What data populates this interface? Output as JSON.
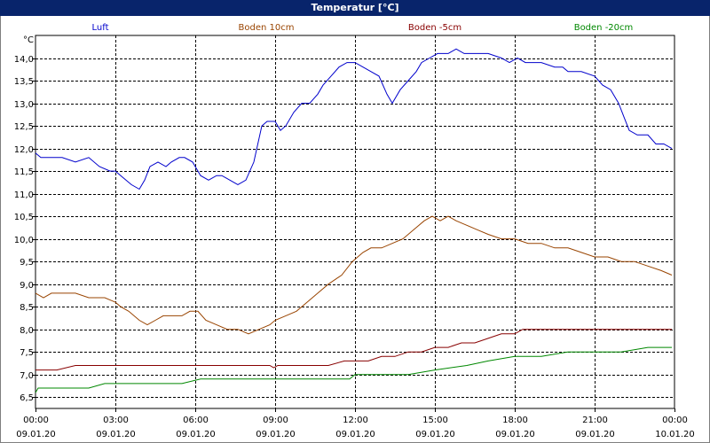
{
  "window": {
    "title": "Temperatur [°C]"
  },
  "chart_data": {
    "type": "line",
    "title": "Temperatur [°C]",
    "ylabel": "°C",
    "ylim": [
      6.25,
      14.5
    ],
    "xlim": [
      0,
      24
    ],
    "grid": true,
    "legend_placement": "top",
    "yticks": [
      "14,0",
      "13,5",
      "13,0",
      "12,5",
      "12,0",
      "11,5",
      "11,0",
      "10,5",
      "10,0",
      "9,5",
      "9,0",
      "8,5",
      "8,0",
      "7,5",
      "7,0",
      "6,5"
    ],
    "ytick_values": [
      14.0,
      13.5,
      13.0,
      12.5,
      12.0,
      11.5,
      11.0,
      10.5,
      10.0,
      9.5,
      9.0,
      8.5,
      8.0,
      7.5,
      7.0,
      6.5
    ],
    "xticks": [
      {
        "time": "00:00",
        "date": "09.01.20",
        "value": 0
      },
      {
        "time": "03:00",
        "date": "09.01.20",
        "value": 3
      },
      {
        "time": "06:00",
        "date": "09.01.20",
        "value": 6
      },
      {
        "time": "09:00",
        "date": "09.01.20",
        "value": 9
      },
      {
        "time": "12:00",
        "date": "09.01.20",
        "value": 12
      },
      {
        "time": "15:00",
        "date": "09.01.20",
        "value": 15
      },
      {
        "time": "18:00",
        "date": "09.01.20",
        "value": 18
      },
      {
        "time": "21:00",
        "date": "09.01.20",
        "value": 21
      },
      {
        "time": "00:00",
        "date": "10.01.20",
        "value": 24
      }
    ],
    "series": [
      {
        "name": "Luft",
        "color": "#0000cc",
        "x": [
          0,
          0.2,
          0.4,
          0.7,
          1.0,
          1.5,
          2.0,
          2.4,
          2.8,
          3.0,
          3.2,
          3.6,
          3.9,
          4.1,
          4.3,
          4.6,
          4.9,
          5.1,
          5.4,
          5.6,
          5.9,
          6.2,
          6.5,
          6.8,
          7.0,
          7.3,
          7.6,
          7.9,
          8.2,
          8.5,
          8.7,
          9.0,
          9.2,
          9.4,
          9.7,
          10.0,
          10.3,
          10.6,
          10.8,
          11.1,
          11.4,
          11.7,
          12.0,
          12.3,
          12.6,
          12.9,
          13.2,
          13.4,
          13.7,
          14.0,
          14.3,
          14.5,
          14.8,
          15.1,
          15.5,
          15.8,
          16.1,
          16.6,
          17.0,
          17.5,
          17.8,
          18.1,
          18.4,
          18.7,
          19.0,
          19.5,
          19.8,
          20.0,
          20.5,
          21.0,
          21.3,
          21.6,
          21.9,
          22.1,
          22.3,
          22.6,
          23.0,
          23.3,
          23.6,
          23.9
        ],
        "values": [
          11.9,
          11.8,
          11.8,
          11.8,
          11.8,
          11.7,
          11.8,
          11.6,
          11.5,
          11.5,
          11.4,
          11.2,
          11.1,
          11.3,
          11.6,
          11.7,
          11.6,
          11.7,
          11.8,
          11.8,
          11.7,
          11.4,
          11.3,
          11.4,
          11.4,
          11.3,
          11.2,
          11.3,
          11.7,
          12.5,
          12.6,
          12.6,
          12.4,
          12.5,
          12.8,
          13.0,
          13.0,
          13.2,
          13.4,
          13.6,
          13.8,
          13.9,
          13.9,
          13.8,
          13.7,
          13.6,
          13.2,
          13.0,
          13.3,
          13.5,
          13.7,
          13.9,
          14.0,
          14.1,
          14.1,
          14.2,
          14.1,
          14.1,
          14.1,
          14.0,
          13.9,
          14.0,
          13.9,
          13.9,
          13.9,
          13.8,
          13.8,
          13.7,
          13.7,
          13.6,
          13.4,
          13.3,
          13.0,
          12.7,
          12.4,
          12.3,
          12.3,
          12.1,
          12.1,
          12.0
        ]
      },
      {
        "name": "Boden 10cm",
        "color": "#994400",
        "x": [
          0,
          0.3,
          0.6,
          1.0,
          1.5,
          2.0,
          2.6,
          3.0,
          3.2,
          3.5,
          3.9,
          4.2,
          4.5,
          4.8,
          5.1,
          5.5,
          5.8,
          6.1,
          6.4,
          6.8,
          7.2,
          7.6,
          8.0,
          8.4,
          8.8,
          9.0,
          9.4,
          9.8,
          10.2,
          10.6,
          11.0,
          11.5,
          11.9,
          12.3,
          12.6,
          13.0,
          13.4,
          13.8,
          14.2,
          14.6,
          14.9,
          15.2,
          15.5,
          15.8,
          16.2,
          16.6,
          17.0,
          17.5,
          18.0,
          18.5,
          19.0,
          19.5,
          20.0,
          20.5,
          21.0,
          21.5,
          22.0,
          22.5,
          23.0,
          23.5,
          23.9
        ],
        "values": [
          8.8,
          8.7,
          8.8,
          8.8,
          8.8,
          8.7,
          8.7,
          8.6,
          8.5,
          8.4,
          8.2,
          8.1,
          8.2,
          8.3,
          8.3,
          8.3,
          8.4,
          8.4,
          8.2,
          8.1,
          8.0,
          8.0,
          7.9,
          8.0,
          8.1,
          8.2,
          8.3,
          8.4,
          8.6,
          8.8,
          9.0,
          9.2,
          9.5,
          9.7,
          9.8,
          9.8,
          9.9,
          10.0,
          10.2,
          10.4,
          10.5,
          10.4,
          10.5,
          10.4,
          10.3,
          10.2,
          10.1,
          10.0,
          10.0,
          9.9,
          9.9,
          9.8,
          9.8,
          9.7,
          9.6,
          9.6,
          9.5,
          9.5,
          9.4,
          9.3,
          9.2
        ]
      },
      {
        "name": "Boden -5cm",
        "color": "#880000",
        "x": [
          0,
          0.8,
          1.5,
          3.0,
          5.0,
          7.0,
          8.8,
          8.95,
          9.1,
          10.0,
          11.0,
          11.6,
          12.5,
          13.0,
          13.5,
          14.0,
          14.5,
          15.0,
          15.5,
          16.0,
          16.5,
          17.0,
          17.5,
          18.0,
          18.3,
          19.0,
          20.0,
          21.0,
          22.0,
          23.0,
          23.9
        ],
        "values": [
          7.1,
          7.1,
          7.2,
          7.2,
          7.2,
          7.2,
          7.2,
          7.15,
          7.2,
          7.2,
          7.2,
          7.3,
          7.3,
          7.4,
          7.4,
          7.5,
          7.5,
          7.6,
          7.6,
          7.7,
          7.7,
          7.8,
          7.9,
          7.9,
          8.0,
          8.0,
          8.0,
          8.0,
          8.0,
          8.0,
          8.0
        ]
      },
      {
        "name": "Boden -20cm",
        "color": "#008800",
        "x": [
          0,
          0.1,
          1.0,
          2.0,
          2.6,
          4.0,
          5.5,
          6.2,
          8.0,
          10.0,
          11.8,
          12.0,
          13.5,
          14.0,
          15.0,
          16.2,
          17.0,
          18.0,
          19.0,
          20.0,
          21.0,
          22.0,
          23.0,
          23.9
        ],
        "values": [
          6.6,
          6.7,
          6.7,
          6.7,
          6.8,
          6.8,
          6.8,
          6.9,
          6.9,
          6.9,
          6.9,
          7.0,
          7.0,
          7.0,
          7.1,
          7.2,
          7.3,
          7.4,
          7.4,
          7.5,
          7.5,
          7.5,
          7.6,
          7.6
        ]
      }
    ]
  }
}
